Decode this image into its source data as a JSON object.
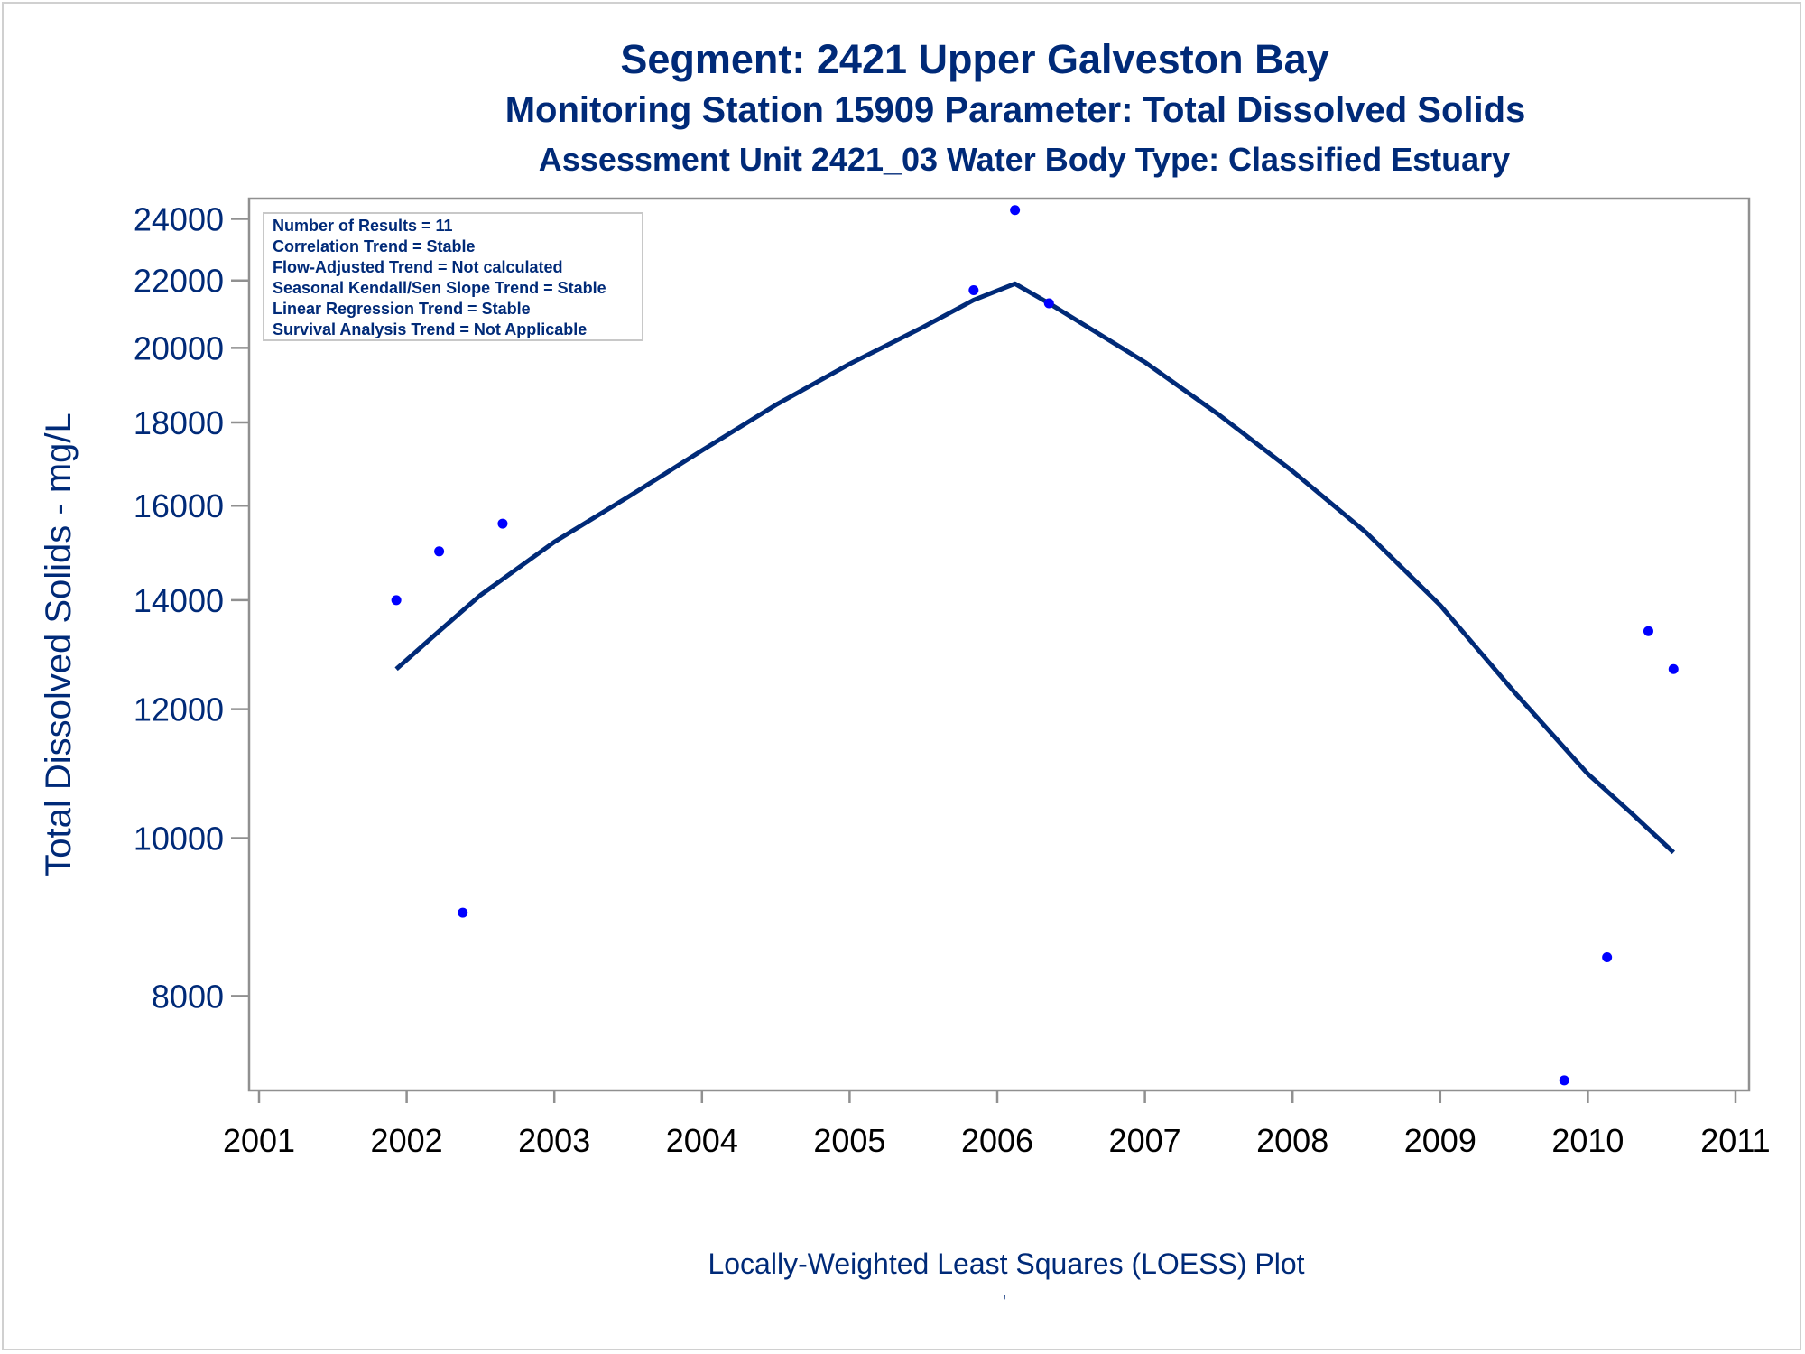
{
  "chart_data": {
    "type": "scatter",
    "title": "Segment: 2421  Upper Galveston Bay",
    "subtitle": "Monitoring Station 15909 Parameter: Total Dissolved Solids",
    "subtitle2": "Assessment Unit 2421_03   Water Body Type: Classified Estuary",
    "xlabel": "",
    "ylabel": "Total Dissolved Solids - mg/L",
    "footnote": "Locally-Weighted Least Squares (LOESS) Plot",
    "footnote_mark": "'",
    "y_scale": "log",
    "xlim": [
      2001,
      2011
    ],
    "ylim": [
      7000,
      24700
    ],
    "x_ticks": [
      2001,
      2002,
      2003,
      2004,
      2005,
      2006,
      2007,
      2008,
      2009,
      2010,
      2011
    ],
    "y_ticks": [
      8000,
      10000,
      12000,
      14000,
      16000,
      18000,
      20000,
      22000,
      24000
    ],
    "grid": false,
    "stats_box": {
      "position": "top-left",
      "lines": [
        "Number of Results = 11",
        "Correlation Trend = Stable",
        "Flow-Adjusted Trend = Not calculated",
        "Seasonal Kendall/Sen Slope Trend = Stable",
        "Linear Regression Trend = Stable",
        "Survival Analysis Trend = Not Applicable"
      ]
    },
    "series": [
      {
        "type": "scatter",
        "color": "#0000ff",
        "points": [
          {
            "x": 2001.93,
            "y": 14000
          },
          {
            "x": 2002.22,
            "y": 15000
          },
          {
            "x": 2002.38,
            "y": 9000
          },
          {
            "x": 2002.65,
            "y": 15600
          },
          {
            "x": 2005.84,
            "y": 21700
          },
          {
            "x": 2006.12,
            "y": 24300
          },
          {
            "x": 2006.35,
            "y": 21300
          },
          {
            "x": 2009.84,
            "y": 7100
          },
          {
            "x": 2010.13,
            "y": 8450
          },
          {
            "x": 2010.41,
            "y": 13400
          },
          {
            "x": 2010.58,
            "y": 12700
          }
        ]
      },
      {
        "type": "line",
        "color": "#002a78",
        "points": [
          {
            "x": 2001.93,
            "y": 12700
          },
          {
            "x": 2002.2,
            "y": 13350
          },
          {
            "x": 2002.5,
            "y": 14100
          },
          {
            "x": 2003.0,
            "y": 15200
          },
          {
            "x": 2003.5,
            "y": 16200
          },
          {
            "x": 2004.0,
            "y": 17300
          },
          {
            "x": 2004.5,
            "y": 18450
          },
          {
            "x": 2005.0,
            "y": 19550
          },
          {
            "x": 2005.5,
            "y": 20600
          },
          {
            "x": 2005.84,
            "y": 21400
          },
          {
            "x": 2006.12,
            "y": 21900
          },
          {
            "x": 2006.35,
            "y": 21300
          },
          {
            "x": 2007.0,
            "y": 19600
          },
          {
            "x": 2007.5,
            "y": 18200
          },
          {
            "x": 2008.0,
            "y": 16800
          },
          {
            "x": 2008.5,
            "y": 15400
          },
          {
            "x": 2009.0,
            "y": 13900
          },
          {
            "x": 2009.5,
            "y": 12300
          },
          {
            "x": 2010.0,
            "y": 10950
          },
          {
            "x": 2010.3,
            "y": 10350
          },
          {
            "x": 2010.58,
            "y": 9800
          }
        ]
      }
    ]
  }
}
